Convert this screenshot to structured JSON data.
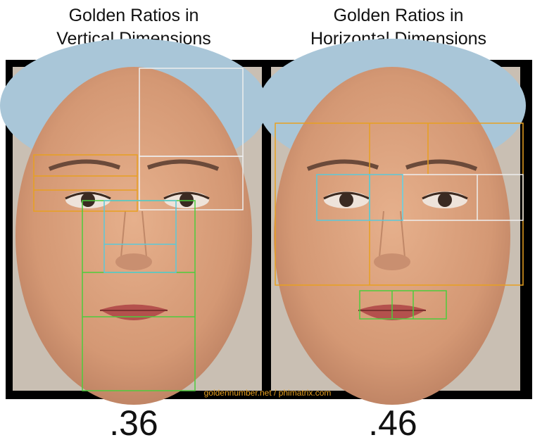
{
  "panels": [
    {
      "title_lines": [
        "Golden Ratios in",
        "Vertical Dimensions"
      ],
      "ratio": ".36"
    },
    {
      "title_lines": [
        "Golden Ratios in",
        "Horizontal Dimensions"
      ],
      "ratio": ".46"
    }
  ],
  "credit": "goldennumber.net / phimatrix.com"
}
